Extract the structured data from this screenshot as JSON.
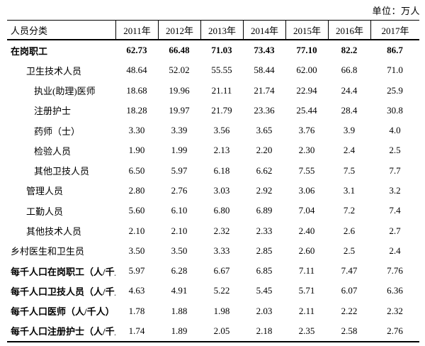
{
  "unit_label": "单位：万人",
  "table": {
    "header": [
      "人员分类",
      "2011年",
      "2012年",
      "2013年",
      "2014年",
      "2015年",
      "2016年",
      "2017年"
    ],
    "rows": [
      {
        "label": "在岗职工",
        "indent": 0,
        "bold_label": true,
        "bold_values": true,
        "values": [
          "62.73",
          "66.48",
          "71.03",
          "73.43",
          "77.10",
          "82.2",
          "86.7"
        ]
      },
      {
        "label": "卫生技术人员",
        "indent": 1,
        "bold_label": false,
        "bold_values": false,
        "values": [
          "48.64",
          "52.02",
          "55.55",
          "58.44",
          "62.00",
          "66.8",
          "71.0"
        ]
      },
      {
        "label": "执业(助理)医师",
        "indent": 2,
        "bold_label": false,
        "bold_values": false,
        "values": [
          "18.68",
          "19.96",
          "21.11",
          "21.74",
          "22.94",
          "24.4",
          "25.9"
        ]
      },
      {
        "label": "注册护士",
        "indent": 2,
        "bold_label": false,
        "bold_values": false,
        "values": [
          "18.28",
          "19.97",
          "21.79",
          "23.36",
          "25.44",
          "28.4",
          "30.8"
        ]
      },
      {
        "label": "药师（士）",
        "indent": 2,
        "bold_label": false,
        "bold_values": false,
        "values": [
          "3.30",
          "3.39",
          "3.56",
          "3.65",
          "3.76",
          "3.9",
          "4.0"
        ]
      },
      {
        "label": "检验人员",
        "indent": 2,
        "bold_label": false,
        "bold_values": false,
        "values": [
          "1.90",
          "1.99",
          "2.13",
          "2.20",
          "2.30",
          "2.4",
          "2.5"
        ]
      },
      {
        "label": "其他卫技人员",
        "indent": 2,
        "bold_label": false,
        "bold_values": false,
        "values": [
          "6.50",
          "5.97",
          "6.18",
          "6.62",
          "7.55",
          "7.5",
          "7.7"
        ]
      },
      {
        "label": "管理人员",
        "indent": 1,
        "bold_label": false,
        "bold_values": false,
        "values": [
          "2.80",
          "2.76",
          "3.03",
          "2.92",
          "3.06",
          "3.1",
          "3.2"
        ]
      },
      {
        "label": "工勤人员",
        "indent": 1,
        "bold_label": false,
        "bold_values": false,
        "values": [
          "5.60",
          "6.10",
          "6.80",
          "6.89",
          "7.04",
          "7.2",
          "7.4"
        ]
      },
      {
        "label": "其他技术人员",
        "indent": 1,
        "bold_label": false,
        "bold_values": false,
        "values": [
          "2.10",
          "2.10",
          "2.32",
          "2.33",
          "2.40",
          "2.6",
          "2.7"
        ]
      },
      {
        "label": "乡村医生和卫生员",
        "indent": 0,
        "bold_label": false,
        "bold_values": false,
        "values": [
          "3.50",
          "3.50",
          "3.33",
          "2.85",
          "2.60",
          "2.5",
          "2.4"
        ]
      },
      {
        "label": "每千人口在岗职工（人/千人）",
        "indent": 0,
        "bold_label": true,
        "bold_values": false,
        "values": [
          "5.97",
          "6.28",
          "6.67",
          "6.85",
          "7.11",
          "7.47",
          "7.76"
        ]
      },
      {
        "label": "每千人口卫技人员（人/千人）",
        "indent": 0,
        "bold_label": true,
        "bold_values": false,
        "values": [
          "4.63",
          "4.91",
          "5.22",
          "5.45",
          "5.71",
          "6.07",
          "6.36"
        ]
      },
      {
        "label": "每千人口医师（人/千人）",
        "indent": 0,
        "bold_label": true,
        "bold_values": false,
        "values": [
          "1.78",
          "1.88",
          "1.98",
          "2.03",
          "2.11",
          "2.22",
          "2.32"
        ]
      },
      {
        "label": "每千人口注册护士（人/千人）",
        "indent": 0,
        "bold_label": true,
        "bold_values": false,
        "values": [
          "1.74",
          "1.89",
          "2.05",
          "2.18",
          "2.35",
          "2.58",
          "2.76"
        ]
      }
    ]
  },
  "colors": {
    "text": "#000000",
    "background": "#ffffff",
    "border": "#000000"
  }
}
